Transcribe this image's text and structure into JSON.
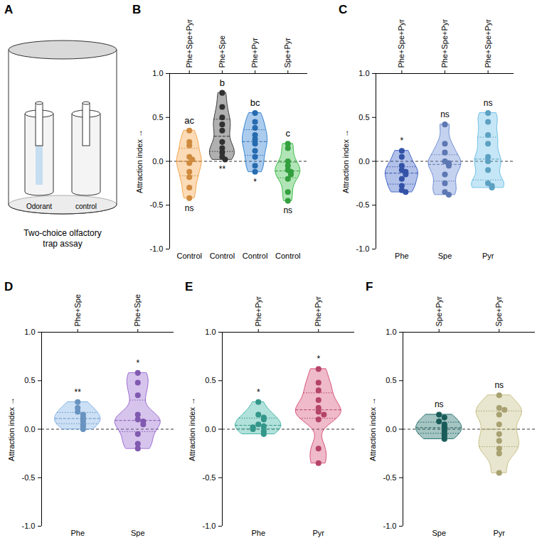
{
  "diagram": {
    "panel": "A",
    "labels": [
      "Odorant",
      "control"
    ],
    "caption": "Two-choice olfactory trap assay"
  },
  "chart_data": [
    {
      "panel": "B",
      "type": "violin",
      "top_categories": [
        "Phe+Spe+Pyr",
        "Phe+Spe",
        "Phe+Pyr",
        "Spe+Pyr"
      ],
      "categories": [
        "Control",
        "Control",
        "Control",
        "Control"
      ],
      "values": [
        [
          0.35,
          0.22,
          0.18,
          0.05,
          0.02,
          -0.02,
          -0.12,
          -0.18,
          -0.3,
          -0.42
        ],
        [
          0.78,
          0.62,
          0.5,
          0.42,
          0.35,
          0.22,
          0.15,
          0.1,
          0.05,
          0.02
        ],
        [
          0.55,
          0.45,
          0.38,
          0.3,
          0.25,
          0.2,
          0.12,
          0.05,
          -0.05,
          -0.12
        ],
        [
          0.2,
          0.15,
          0.0,
          -0.05,
          -0.1,
          -0.12,
          -0.15,
          -0.2,
          -0.35,
          -0.45
        ]
      ],
      "colors": [
        "#F7A54A",
        "#3a3a3a",
        "#2F80D1",
        "#3DBE4A"
      ],
      "ylabel": "Attraction index",
      "ylim": [
        -1,
        1
      ],
      "yticks": [
        {
          "value": -1,
          "label": "-1.0"
        },
        {
          "value": -0.5,
          "label": "-0.5"
        },
        {
          "value": 0,
          "label": "0.0"
        },
        {
          "value": 0.5,
          "label": "0.5"
        },
        {
          "value": 1,
          "label": "1.0"
        }
      ],
      "reference_y": 0,
      "group_labels": [
        "ac",
        "b",
        "bc",
        "c"
      ],
      "significance": [
        "ns",
        "**",
        "*",
        "ns"
      ]
    },
    {
      "panel": "C",
      "type": "violin",
      "top_categories": [
        "Phe+Spe+Pyr",
        "Phe+Spe+Pyr",
        "Phe+Spe+Pyr"
      ],
      "categories": [
        "Phe",
        "Spe",
        "Pyr"
      ],
      "values": [
        [
          0.12,
          0.05,
          -0.05,
          -0.1,
          -0.12,
          -0.15,
          -0.2,
          -0.28,
          -0.33,
          -0.35
        ],
        [
          0.42,
          0.2,
          0.1,
          0.0,
          -0.02,
          -0.05,
          -0.15,
          -0.25,
          -0.35,
          -0.38
        ],
        [
          0.55,
          0.45,
          0.3,
          0.2,
          0.05,
          0.0,
          -0.1,
          -0.25,
          -0.28,
          -0.3
        ]
      ],
      "colors": [
        "#3E63C8",
        "#6F8FD6",
        "#6EC0E8"
      ],
      "ylabel": "Attraction index",
      "ylim": [
        -1,
        1
      ],
      "yticks": [
        {
          "value": -1,
          "label": "-1.0"
        },
        {
          "value": -0.5,
          "label": "-0.5"
        },
        {
          "value": 0,
          "label": "0.0"
        },
        {
          "value": 0.5,
          "label": "0.5"
        },
        {
          "value": 1,
          "label": "1.0"
        }
      ],
      "reference_y": 0,
      "significance": [
        "*",
        "ns",
        "ns"
      ]
    },
    {
      "panel": "D",
      "type": "violin",
      "top_categories": [
        "Phe+Spe",
        "Phe+Spe"
      ],
      "categories": [
        "Phe",
        "Spe"
      ],
      "values": [
        [
          0.28,
          0.22,
          0.18,
          0.15,
          0.12,
          0.1,
          0.08,
          0.05,
          0.03,
          0.0
        ],
        [
          0.58,
          0.48,
          0.35,
          0.15,
          0.1,
          0.08,
          0.05,
          -0.05,
          -0.15,
          -0.2
        ]
      ],
      "colors": [
        "#7DB0E6",
        "#9A6BD2"
      ],
      "ylabel": "Attraction index",
      "ylim": [
        -1,
        1
      ],
      "yticks": [
        {
          "value": -1,
          "label": "-1.0"
        },
        {
          "value": -0.5,
          "label": "-0.5"
        },
        {
          "value": 0,
          "label": "0.0"
        },
        {
          "value": 0.5,
          "label": "0.5"
        },
        {
          "value": 1,
          "label": "1.0"
        }
      ],
      "reference_y": 0,
      "significance": [
        "**",
        "*"
      ]
    },
    {
      "panel": "E",
      "type": "violin",
      "top_categories": [
        "Phe+Pyr",
        "Phe+Pyr"
      ],
      "categories": [
        "Phe",
        "Pyr"
      ],
      "values": [
        [
          0.28,
          0.15,
          0.12,
          0.1,
          0.05,
          0.03,
          0.02,
          0.0,
          -0.02,
          -0.05
        ],
        [
          0.62,
          0.48,
          0.4,
          0.3,
          0.22,
          0.18,
          0.15,
          0.1,
          -0.2,
          -0.35
        ]
      ],
      "colors": [
        "#3DB5A5",
        "#D8527B"
      ],
      "ylabel": "Attraction index",
      "ylim": [
        -1,
        1
      ],
      "yticks": [
        {
          "value": -1,
          "label": "-1.0"
        },
        {
          "value": -0.5,
          "label": "-0.5"
        },
        {
          "value": 0,
          "label": "0.0"
        },
        {
          "value": 0.5,
          "label": "0.5"
        },
        {
          "value": 1,
          "label": "1.0"
        }
      ],
      "reference_y": 0,
      "significance": [
        "*",
        "*"
      ]
    },
    {
      "panel": "F",
      "type": "violin",
      "top_categories": [
        "Spe+Pyr",
        "Spe+Pyr"
      ],
      "categories": [
        "Spe",
        "Pyr"
      ],
      "values": [
        [
          0.15,
          0.12,
          0.08,
          0.05,
          0.03,
          0.0,
          -0.02,
          -0.05,
          -0.07,
          -0.1
        ],
        [
          0.35,
          0.22,
          0.2,
          0.15,
          0.05,
          -0.05,
          -0.12,
          -0.2,
          -0.25,
          -0.45
        ]
      ],
      "colors": [
        "#1E6E6A",
        "#C9C187"
      ],
      "ylabel": "Attraction index",
      "ylim": [
        -1,
        1
      ],
      "yticks": [
        {
          "value": -1,
          "label": "-1.0"
        },
        {
          "value": -0.5,
          "label": "-0.5"
        },
        {
          "value": 0,
          "label": "0.0"
        },
        {
          "value": 0.5,
          "label": "0.5"
        },
        {
          "value": 1,
          "label": "1.0"
        }
      ],
      "reference_y": 0,
      "significance": [
        "ns",
        "ns"
      ]
    }
  ]
}
